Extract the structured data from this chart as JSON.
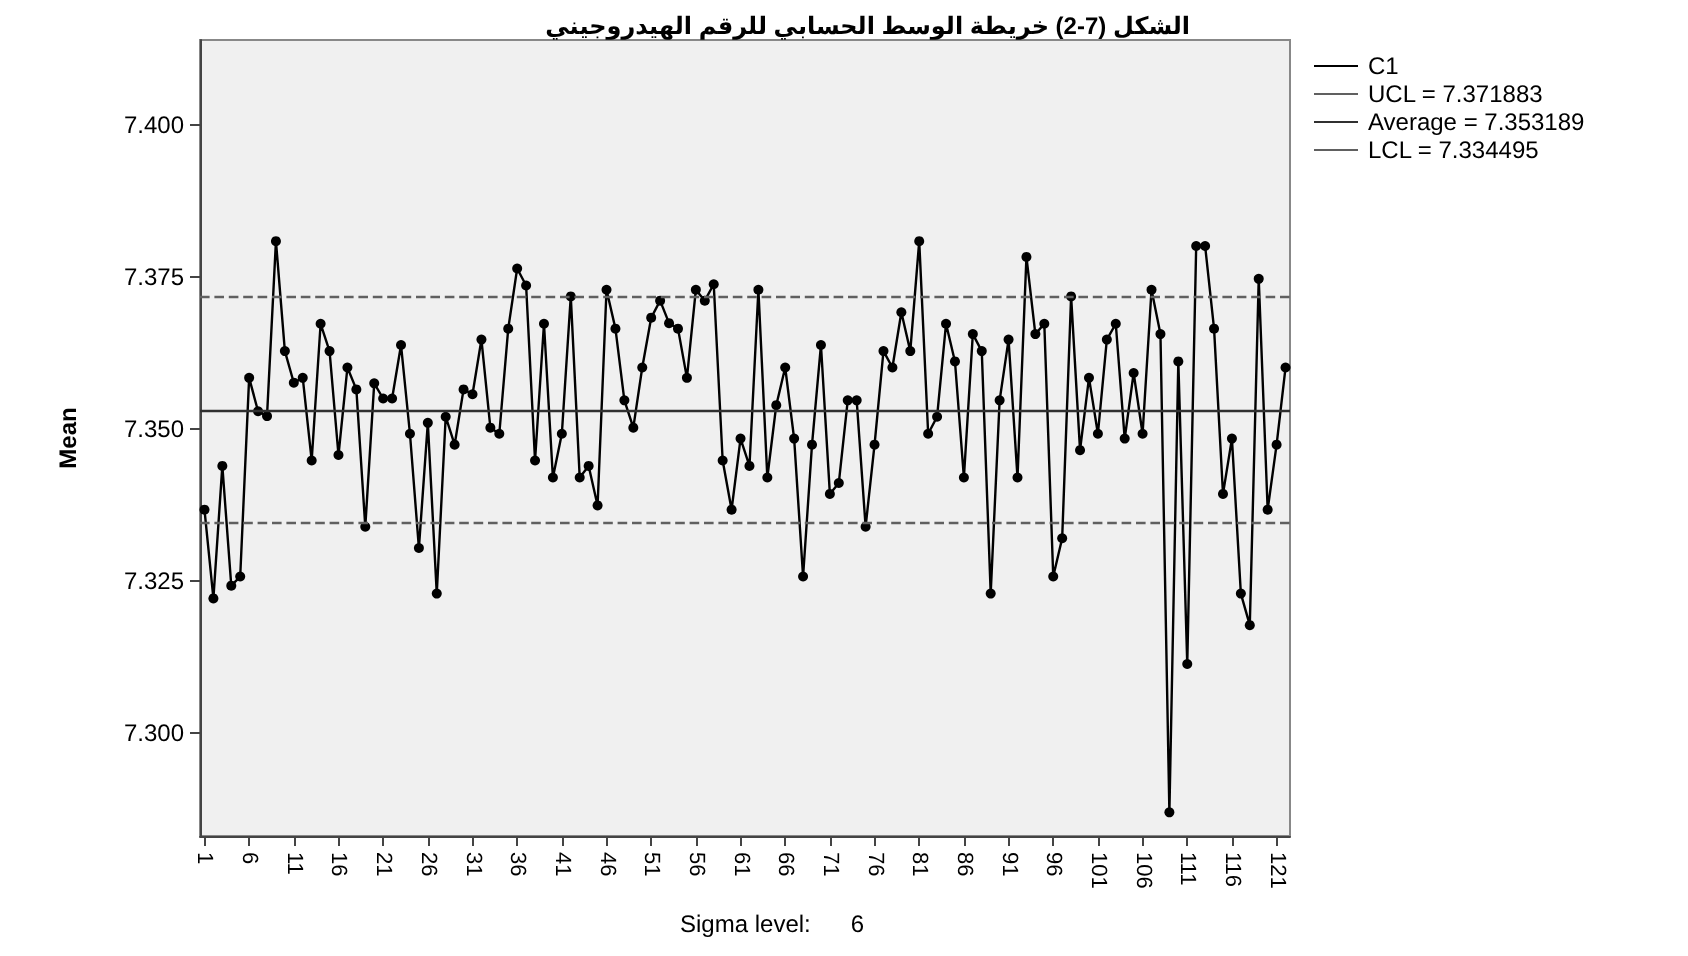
{
  "chart_data": {
    "type": "line",
    "title": "الشكل (7-2) خريطة الوسط الحسابي للرقم الهيدروجيني",
    "ylabel": "Mean",
    "annotations": [
      "Sigma level:      6"
    ],
    "categories": [
      "1",
      null,
      null,
      null,
      null,
      "6",
      null,
      null,
      null,
      null,
      "11",
      null,
      null,
      null,
      null,
      "16",
      null,
      null,
      null,
      null,
      "21",
      null,
      null,
      null,
      null,
      "26",
      null,
      null,
      null,
      null,
      "31",
      null,
      null,
      null,
      null,
      "36",
      null,
      null,
      null,
      null,
      "41",
      null,
      null,
      null,
      null,
      "46",
      null,
      null,
      null,
      null,
      "51",
      null,
      null,
      null,
      null,
      "56",
      null,
      null,
      null,
      null,
      "61",
      null,
      null,
      null,
      null,
      "66",
      null,
      null,
      null,
      null,
      "71",
      null,
      null,
      null,
      null,
      "76",
      null,
      null,
      null,
      null,
      "81",
      null,
      null,
      null,
      null,
      "86",
      null,
      null,
      null,
      null,
      "91",
      null,
      null,
      null,
      null,
      "96",
      null,
      null,
      null,
      null,
      "101",
      null,
      null,
      null,
      null,
      "106",
      null,
      null,
      null,
      null,
      "111",
      null,
      null,
      null,
      null,
      "116",
      null,
      null,
      null,
      null,
      "121",
      null
    ],
    "series": [
      {
        "name": "C1",
        "color": "#000000",
        "values": [
          7.3367,
          7.3221,
          7.3439,
          7.3242,
          7.3257,
          7.3584,
          7.3529,
          7.3521,
          7.3809,
          7.3628,
          7.3576,
          7.3584,
          7.3448,
          7.3673,
          7.3628,
          7.3457,
          7.3601,
          7.3565,
          7.3339,
          7.3575,
          7.355,
          7.355,
          7.3638,
          7.3492,
          7.3304,
          7.351,
          7.3229,
          7.352,
          7.3474,
          7.3565,
          7.3557,
          7.3647,
          7.3502,
          7.3492,
          7.3665,
          7.3764,
          7.3736,
          7.3448,
          7.3673,
          7.342,
          7.3492,
          7.3718,
          7.342,
          7.3439,
          7.3374,
          7.3729,
          7.3665,
          7.3547,
          7.3502,
          7.3601,
          7.3683,
          7.3711,
          7.3674,
          7.3665,
          7.3584,
          7.3729,
          7.3711,
          7.3738,
          7.3448,
          7.3367,
          7.3484,
          7.3439,
          7.3729,
          7.342,
          7.3539,
          7.3601,
          7.3484,
          7.3257,
          7.3474,
          7.3638,
          7.3393,
          7.3411,
          7.3547,
          7.3547,
          7.3339,
          7.3474,
          7.3628,
          7.3601,
          7.3692,
          7.3628,
          7.3809,
          7.3492,
          7.352,
          7.3673,
          7.3611,
          7.342,
          7.3656,
          7.3628,
          7.3229,
          7.3547,
          7.3647,
          7.342,
          7.3783,
          7.3656,
          7.3673,
          7.3257,
          7.332,
          7.3718,
          7.3465,
          7.3584,
          7.3492,
          7.3647,
          7.3673,
          7.3484,
          7.3592,
          7.3492,
          7.3729,
          7.3656,
          7.2869,
          7.3611,
          7.3113,
          7.3801,
          7.3801,
          7.3665,
          7.3393,
          7.3484,
          7.3229,
          7.3177,
          7.3747,
          7.3367,
          7.3474,
          7.3601
        ]
      }
    ],
    "ref_lines": [
      {
        "axis": "y",
        "value": 7.371883,
        "label": "UCL = 7.371883",
        "color": "#606060",
        "line_style": "dashed"
      },
      {
        "axis": "y",
        "value": 7.353189,
        "label": "Average = 7.353189",
        "color": "#303030",
        "line_style": "solid"
      },
      {
        "axis": "y",
        "value": 7.334495,
        "label": "LCL = 7.334495",
        "color": "#606060",
        "line_style": "dashed"
      }
    ],
    "ylim": [
      7.283,
      7.414
    ],
    "yticks": [
      {
        "value": 7.3,
        "label": "7.300"
      },
      {
        "value": 7.325,
        "label": "7.325"
      },
      {
        "value": 7.35,
        "label": "7.350"
      },
      {
        "value": 7.375,
        "label": "7.375"
      },
      {
        "value": 7.4,
        "label": "7.400"
      }
    ],
    "grid": false,
    "legend": "top right",
    "marker": "circle",
    "line_style": "solid"
  }
}
